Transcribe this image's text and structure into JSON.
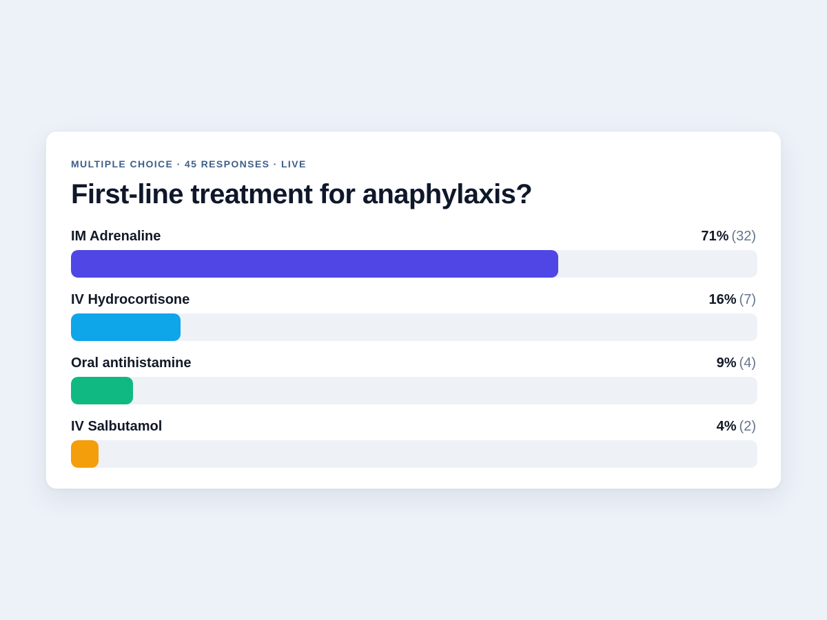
{
  "poll": {
    "meta": "MULTIPLE CHOICE · 45 RESPONSES · LIVE",
    "question": "First-line treatment for anaphylaxis?",
    "options": [
      {
        "label": "IM Adrenaline",
        "percent_text": "71%",
        "count_text": "(32)",
        "share": 0.71,
        "color": "#4f46e5"
      },
      {
        "label": "IV Hydrocortisone",
        "percent_text": "16%",
        "count_text": "(7)",
        "share": 0.16,
        "color": "#0ea5e9"
      },
      {
        "label": "Oral antihistamine",
        "percent_text": "9%",
        "count_text": "(4)",
        "share": 0.09,
        "color": "#10b981"
      },
      {
        "label": "IV Salbutamol",
        "percent_text": "4%",
        "count_text": "(2)",
        "share": 0.04,
        "color": "#f59e0b"
      }
    ]
  }
}
